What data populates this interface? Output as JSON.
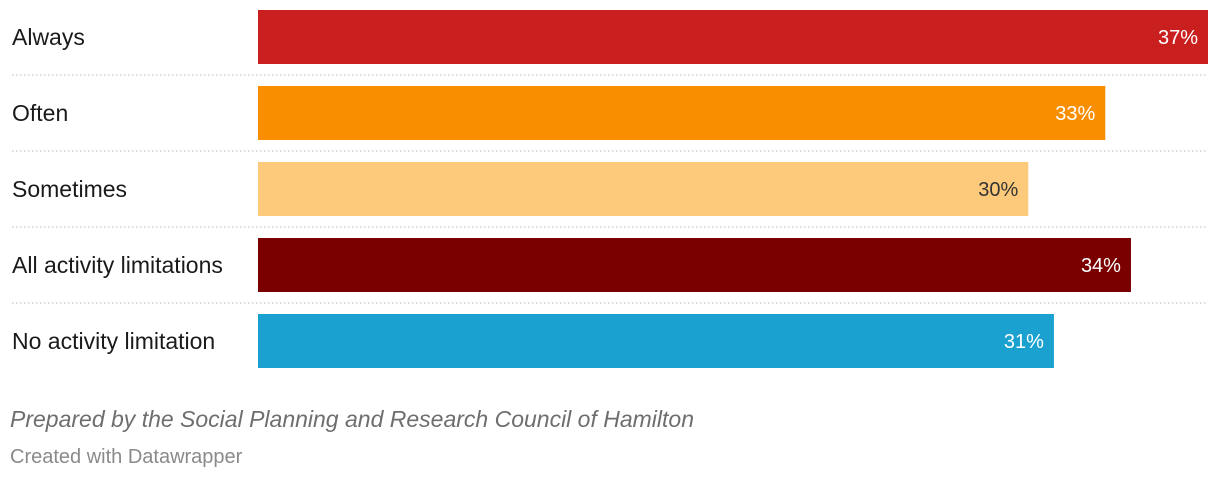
{
  "chart_data": {
    "type": "bar",
    "orientation": "horizontal",
    "categories": [
      "Always",
      "Often",
      "Sometimes",
      "All activity limitations",
      "No activity limitation"
    ],
    "values": [
      37,
      33,
      30,
      34,
      31
    ],
    "value_labels": [
      "37%",
      "33%",
      "30%",
      "34%",
      "31%"
    ],
    "colors": [
      "#c9201f",
      "#f98e00",
      "#fdc97a",
      "#7a0000",
      "#1aa1cf"
    ],
    "label_colors": [
      "#ffffff",
      "#ffffff",
      "#333333",
      "#ffffff",
      "#ffffff"
    ],
    "xlim": [
      0,
      37
    ],
    "grid": false
  },
  "footer": {
    "credit": "Prepared by the Social Planning and Research Council of Hamilton",
    "source": "Created with Datawrapper"
  }
}
